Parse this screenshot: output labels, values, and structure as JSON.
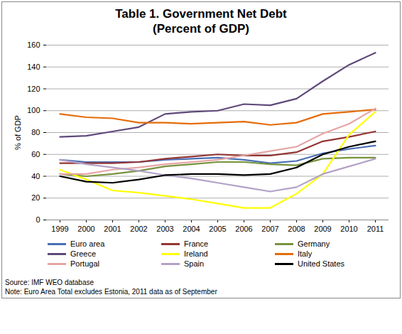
{
  "chart_data": {
    "type": "line",
    "title": "Table 1. Government Net Debt",
    "subtitle": "(Percent of GDP)",
    "y_label": "% of GDP",
    "source": "Source: IMF WEO database",
    "note": "Note: Euro Area Total excludes Estonia, 2011 data as of September",
    "categories": [
      "1999",
      "2000",
      "2001",
      "2002",
      "2003",
      "2004",
      "2005",
      "2006",
      "2007",
      "2008",
      "2009",
      "2010",
      "2011"
    ],
    "ylim": [
      0,
      160
    ],
    "yticks": [
      0,
      20,
      40,
      60,
      80,
      100,
      120,
      140,
      160
    ],
    "grid": true,
    "legend": "bottom",
    "series": [
      {
        "name": "Euro area",
        "color": "#4a6fb5",
        "values": [
          55,
          53,
          53,
          53,
          55,
          56,
          57,
          55,
          52,
          54,
          61,
          65,
          68
        ]
      },
      {
        "name": "France",
        "color": "#943634",
        "values": [
          52,
          52,
          52,
          53,
          56,
          58,
          60,
          59,
          59,
          62,
          72,
          76,
          81
        ]
      },
      {
        "name": "Germany",
        "color": "#77933c",
        "values": [
          42,
          40,
          42,
          45,
          49,
          51,
          53,
          53,
          51,
          50,
          56,
          57,
          57
        ]
      },
      {
        "name": "Greece",
        "color": "#5f497a",
        "values": [
          76,
          77,
          81,
          85,
          97,
          99,
          100,
          106,
          105,
          111,
          127,
          142,
          153
        ]
      },
      {
        "name": "Ireland",
        "color": "#ffff00",
        "values": [
          46,
          37,
          27,
          25,
          22,
          19,
          15,
          11,
          11,
          24,
          42,
          78,
          99
        ]
      },
      {
        "name": "Italy",
        "color": "#e46c0a",
        "values": [
          97,
          94,
          93,
          89,
          89,
          88,
          89,
          90,
          87,
          89,
          97,
          99,
          101
        ]
      },
      {
        "name": "Portugal",
        "color": "#e6a5a5",
        "values": [
          42,
          42,
          46,
          48,
          51,
          53,
          55,
          59,
          63,
          67,
          79,
          88,
          102
        ]
      },
      {
        "name": "Spain",
        "color": "#b3a2c7",
        "values": [
          55,
          51,
          48,
          45,
          41,
          38,
          34,
          30,
          26,
          30,
          42,
          49,
          56
        ]
      },
      {
        "name": "United States",
        "color": "#000000",
        "values": [
          40,
          35,
          34,
          37,
          41,
          42,
          42,
          41,
          42,
          48,
          60,
          67,
          72
        ]
      }
    ]
  }
}
